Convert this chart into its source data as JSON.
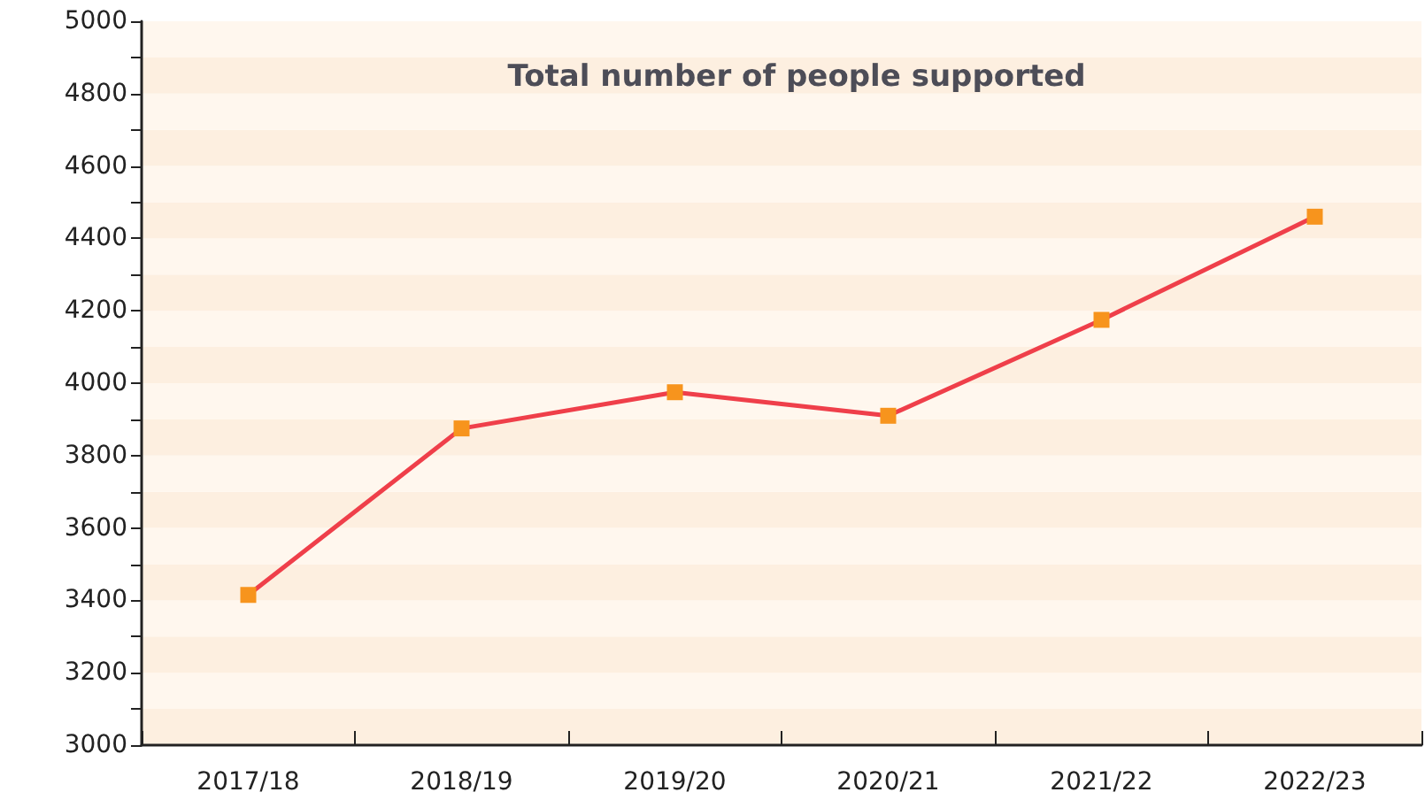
{
  "chart_data": {
    "type": "line",
    "title": "Total number of people supported",
    "categories": [
      "2017/18",
      "2018/19",
      "2019/20",
      "2020/21",
      "2021/22",
      "2022/23"
    ],
    "series": [
      {
        "color": "#ef3f4a",
        "colors": [
          "#f7941d",
          "#f7941d",
          "#f7941d",
          "#f7941d",
          "#f7941d",
          "#f7941d"
        ],
        "values": [
          3415,
          3875,
          3975,
          3910,
          4175,
          4460
        ]
      }
    ],
    "ylim": [
      3000,
      5000
    ],
    "yticks": [
      3000,
      {
        "value": 3100,
        "label": null
      },
      3200,
      {
        "value": 3300,
        "label": null
      },
      3400,
      {
        "value": 3500,
        "label": null
      },
      3600,
      {
        "value": 3700,
        "label": null
      },
      3800,
      {
        "value": 3900,
        "label": null
      },
      4000,
      {
        "value": 4100,
        "label": null
      },
      4200,
      {
        "value": 4300,
        "label": null
      },
      4400,
      {
        "value": 4500,
        "label": null
      },
      4600,
      {
        "value": 4700,
        "label": null
      },
      4800,
      {
        "value": 4900,
        "label": null
      },
      5000
    ],
    "marker": "square",
    "line_style": "solid"
  }
}
